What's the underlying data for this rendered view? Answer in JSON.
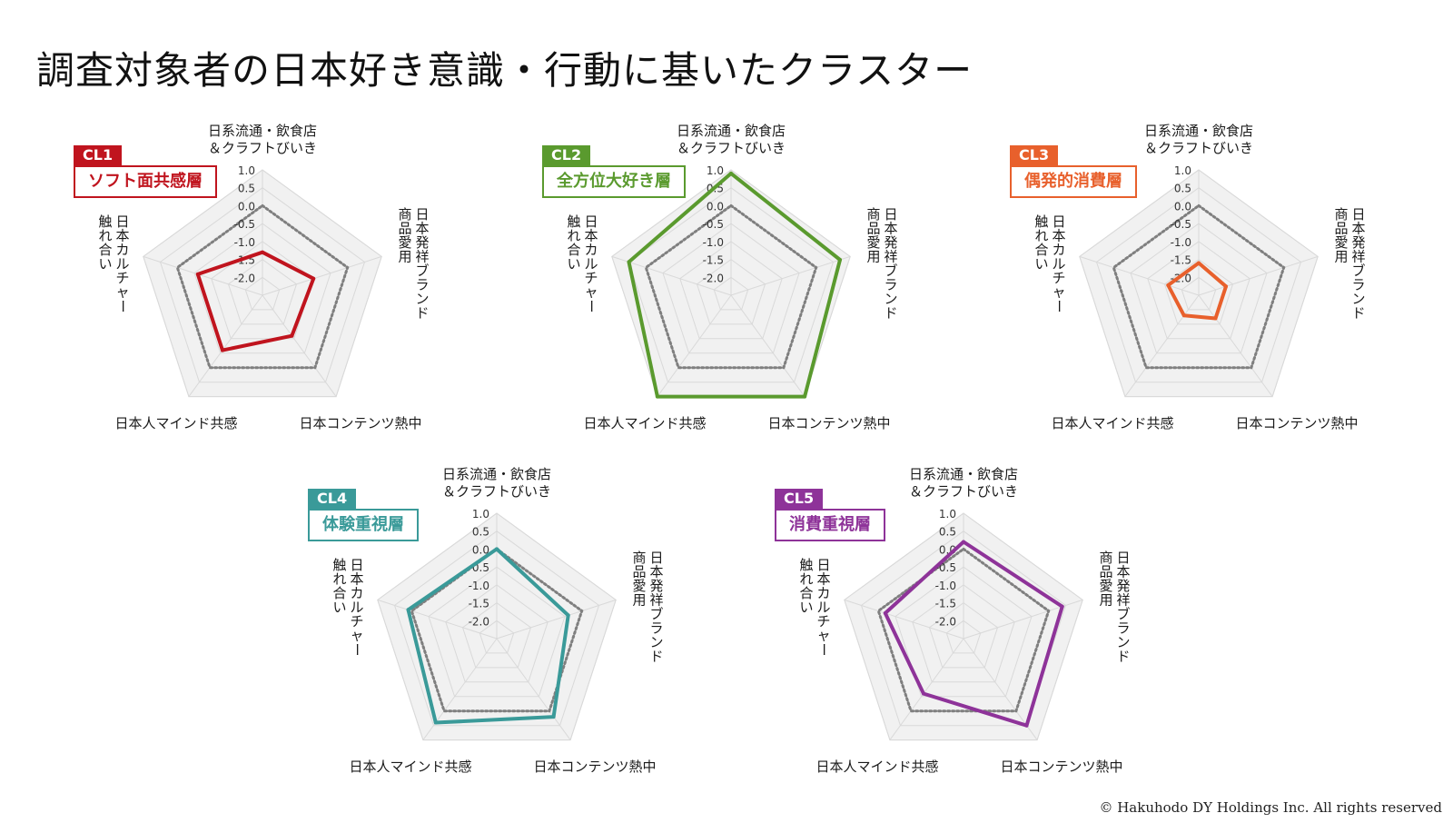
{
  "page": {
    "title": "調査対象者の日本好き意識・行動に基いたクラスター",
    "copyright": "© Hakuhodo DY Holdings Inc. All rights reserved"
  },
  "axes": [
    "日系流通・飲食店\n＆クラフトびいき",
    "日本発祥ブランド\n商品愛用",
    "日本コンテンツ熱中",
    "日本人マインド共感",
    "日本カルチャー\n触れ合い"
  ],
  "ticks": [
    "1.0",
    "0.5",
    "0.0",
    "-0.5",
    "-1.0",
    "-1.5",
    "-2.0"
  ],
  "chart_data": [
    {
      "type": "radar",
      "tag": "CL1",
      "name": "ソフト面共感層",
      "color": "#c0141e",
      "categories": [
        "日系流通・飲食店＆クラフトびいき",
        "日本発祥ブランド商品愛用",
        "日本コンテンツ熱中",
        "日本人マインド共感",
        "日本カルチャー触れ合い"
      ],
      "values": [
        -1.3,
        -1.0,
        -1.1,
        -0.6,
        -0.6
      ],
      "reference": [
        0.0,
        0.0,
        0.0,
        0.0,
        0.0
      ],
      "rlim": [
        -2.5,
        1.0
      ]
    },
    {
      "type": "radar",
      "tag": "CL2",
      "name": "全方位大好き層",
      "color": "#5a9a2e",
      "categories": [
        "日系流通・飲食店＆クラフトびいき",
        "日本発祥ブランド商品愛用",
        "日本コンテンツ熱中",
        "日本人マインド共感",
        "日本カルチャー触れ合い"
      ],
      "values": [
        0.9,
        0.7,
        1.0,
        1.0,
        0.5
      ],
      "reference": [
        0.0,
        0.0,
        0.0,
        0.0,
        0.0
      ],
      "rlim": [
        -2.5,
        1.0
      ]
    },
    {
      "type": "radar",
      "tag": "CL3",
      "name": "偶発的消費層",
      "color": "#e8602c",
      "categories": [
        "日系流通・飲食店＆クラフトびいき",
        "日本発祥ブランド商品愛用",
        "日本コンテンツ熱中",
        "日本人マインド共感",
        "日本カルチャー触れ合い"
      ],
      "values": [
        -1.6,
        -1.7,
        -1.7,
        -1.8,
        -1.6
      ],
      "reference": [
        0.0,
        0.0,
        0.0,
        0.0,
        0.0
      ],
      "rlim": [
        -2.5,
        1.0
      ]
    },
    {
      "type": "radar",
      "tag": "CL4",
      "name": "体験重視層",
      "color": "#3a9a99",
      "categories": [
        "日系流通・飲食店＆クラフトびいき",
        "日本発祥ブランド商品愛用",
        "日本コンテンツ熱中",
        "日本人マインド共感",
        "日本カルチャー触れ合い"
      ],
      "values": [
        0.0,
        -0.4,
        0.2,
        0.4,
        0.1
      ],
      "reference": [
        0.0,
        0.0,
        0.0,
        0.0,
        0.0
      ],
      "rlim": [
        -2.5,
        1.0
      ]
    },
    {
      "type": "radar",
      "tag": "CL5",
      "name": "消費重視層",
      "color": "#8e3399",
      "categories": [
        "日系流通・飲食店＆クラフトびいき",
        "日本発祥ブランド商品愛用",
        "日本コンテンツ熱中",
        "日本人マインド共感",
        "日本カルチャー触れ合い"
      ],
      "values": [
        0.2,
        0.4,
        0.5,
        -0.6,
        -0.2
      ],
      "reference": [
        0.0,
        0.0,
        0.0,
        0.0,
        0.0
      ],
      "rlim": [
        -2.5,
        1.0
      ]
    }
  ]
}
